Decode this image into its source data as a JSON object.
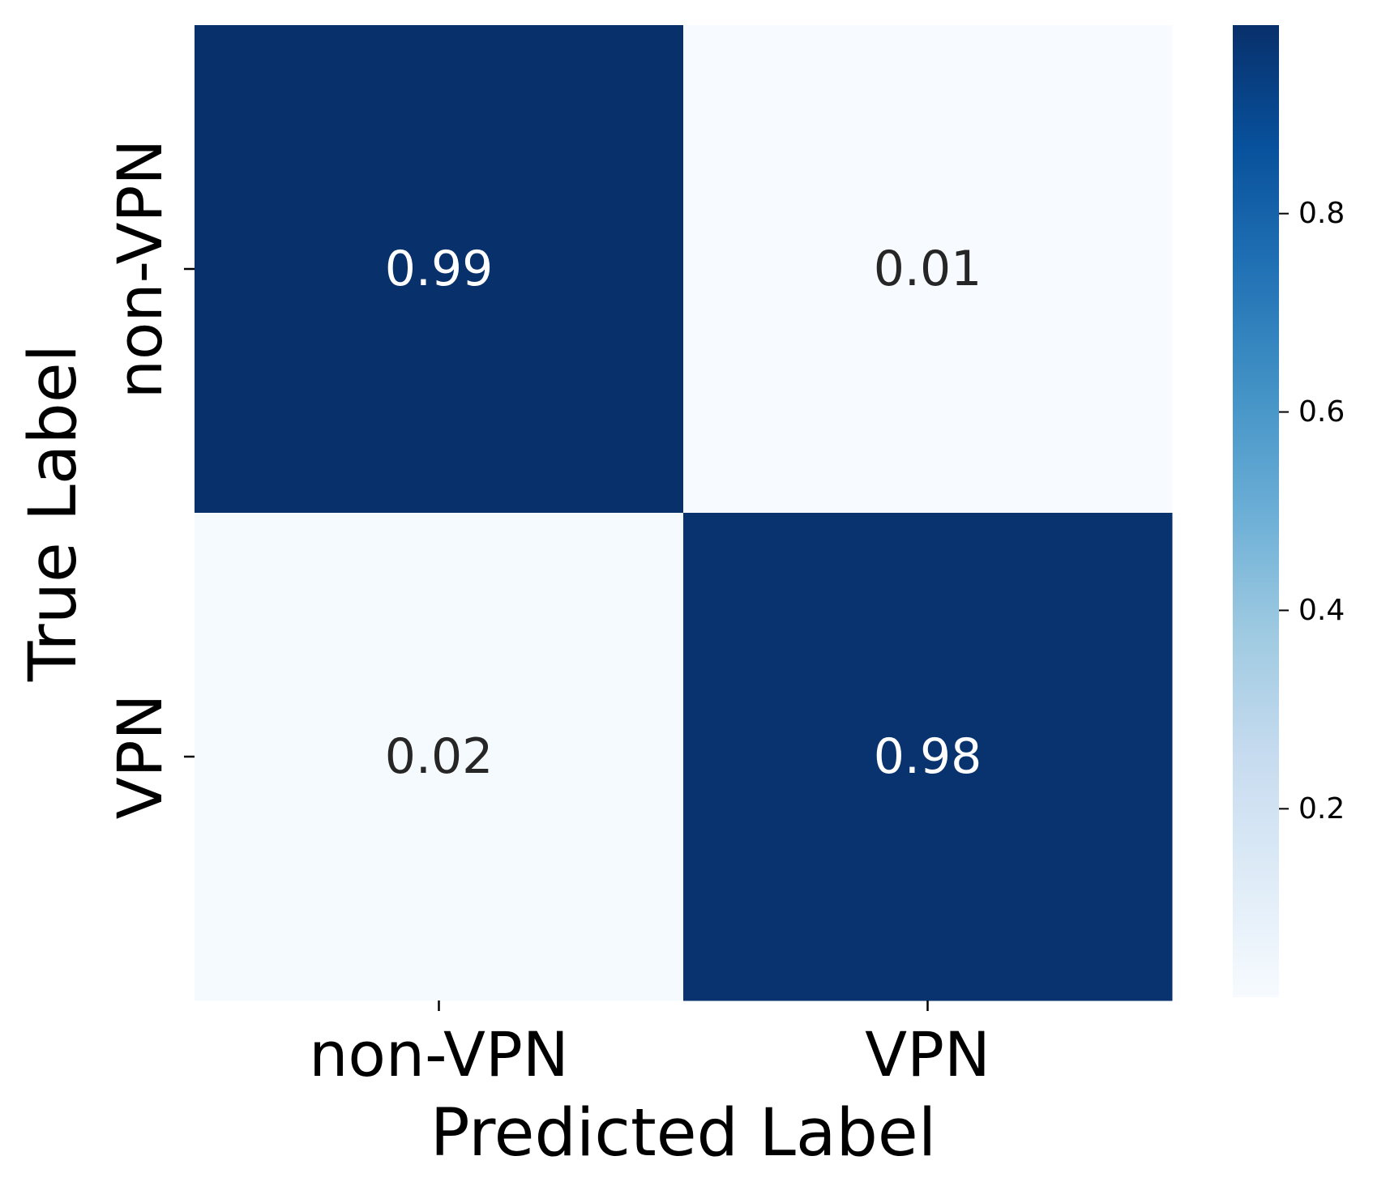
{
  "chart_data": {
    "type": "heatmap",
    "x_categories": [
      "non-VPN",
      "VPN"
    ],
    "y_categories": [
      "non-VPN",
      "VPN"
    ],
    "values": [
      [
        0.99,
        0.01
      ],
      [
        0.02,
        0.98
      ]
    ],
    "annotations": [
      [
        "0.99",
        "0.01"
      ],
      [
        "0.02",
        "0.98"
      ]
    ],
    "xlabel": "Predicted Label",
    "ylabel": "True Label",
    "colormap": "Blues",
    "colorbar": {
      "range": [
        0.01,
        0.99
      ],
      "ticks": [
        "0.2",
        "0.4",
        "0.6",
        "0.8"
      ],
      "tick_values": [
        0.2,
        0.4,
        0.6,
        0.8
      ]
    },
    "colors": {
      "low": "#f7fbff",
      "high": "#08306b",
      "text_on_dark": "#ffffff",
      "text_on_light": "#262626"
    }
  }
}
